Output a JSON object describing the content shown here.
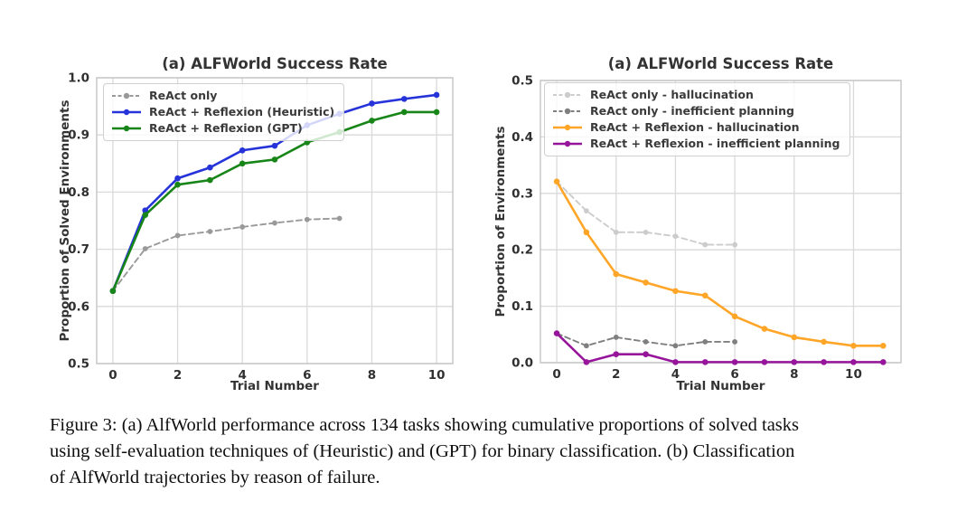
{
  "figure": {
    "caption_lines": [
      "Figure 3: (a) AlfWorld performance across 134 tasks showing cumulative proportions of solved tasks",
      "using self-evaluation techniques of (Heuristic) and (GPT) for binary classification. (b) Classification",
      "of AlfWorld trajectories by reason of failure."
    ]
  },
  "chart_data": [
    {
      "type": "line",
      "title": "(a) ALFWorld Success Rate",
      "xlabel": "Trial Number",
      "ylabel": "Proportion of Solved Environments",
      "xlim": [
        -0.5,
        10.5
      ],
      "ylim": [
        0.5,
        1.0
      ],
      "xticks": [
        0,
        2,
        4,
        6,
        8,
        10
      ],
      "yticks": [
        0.5,
        0.6,
        0.7,
        0.8,
        0.9,
        1.0
      ],
      "grid": true,
      "legend_position": "upper left",
      "series": [
        {
          "name": "ReAct only",
          "color": "#999999",
          "style": "dashed",
          "x": [
            0,
            1,
            2,
            3,
            4,
            5,
            6,
            7
          ],
          "values": [
            0.627,
            0.701,
            0.724,
            0.731,
            0.739,
            0.746,
            0.752,
            0.754
          ]
        },
        {
          "name": "ReAct + Reflexion (Heuristic)",
          "color": "#2533d9",
          "style": "solid",
          "x": [
            0,
            1,
            2,
            3,
            4,
            5,
            6,
            7,
            8,
            9,
            10
          ],
          "values": [
            0.627,
            0.768,
            0.824,
            0.843,
            0.873,
            0.881,
            0.917,
            0.937,
            0.955,
            0.963,
            0.97
          ]
        },
        {
          "name": "ReAct + Reflexion (GPT)",
          "color": "#178517",
          "style": "solid",
          "x": [
            0,
            1,
            2,
            3,
            4,
            5,
            6,
            7,
            8,
            9,
            10
          ],
          "values": [
            0.627,
            0.76,
            0.813,
            0.821,
            0.85,
            0.857,
            0.887,
            0.905,
            0.925,
            0.94,
            0.94
          ]
        }
      ]
    },
    {
      "type": "line",
      "title": "(a) ALFWorld Success Rate",
      "xlabel": "Trial Number",
      "ylabel": "Proportion of Environments",
      "xlim": [
        -0.55,
        11.6
      ],
      "ylim": [
        0.0,
        0.5
      ],
      "xticks": [
        0,
        2,
        4,
        6,
        8,
        10
      ],
      "yticks": [
        0.0,
        0.1,
        0.2,
        0.3,
        0.4,
        0.5
      ],
      "grid": true,
      "legend_position": "upper left",
      "series": [
        {
          "name": "ReAct only - hallucination",
          "color": "#cccccc",
          "style": "dashed",
          "x": [
            0,
            1,
            2,
            3,
            4,
            5,
            6
          ],
          "values": [
            0.321,
            0.269,
            0.231,
            0.231,
            0.224,
            0.209,
            0.209
          ]
        },
        {
          "name": "ReAct only - inefficient planning",
          "color": "#7f7f7f",
          "style": "dashed",
          "x": [
            0,
            1,
            2,
            3,
            4,
            5,
            6
          ],
          "values": [
            0.052,
            0.03,
            0.045,
            0.037,
            0.03,
            0.037,
            0.037
          ]
        },
        {
          "name": "ReAct + Reflexion - hallucination",
          "color": "#ffa629",
          "style": "solid",
          "x": [
            0,
            1,
            2,
            3,
            4,
            5,
            6,
            7,
            8,
            9,
            10,
            11
          ],
          "values": [
            0.321,
            0.231,
            0.157,
            0.142,
            0.127,
            0.119,
            0.082,
            0.06,
            0.045,
            0.037,
            0.03,
            0.03
          ]
        },
        {
          "name": "ReAct + Reflexion - inefficient planning",
          "color": "#96159b",
          "style": "solid",
          "x": [
            0,
            1,
            2,
            3,
            4,
            5,
            6,
            7,
            8,
            9,
            10,
            11
          ],
          "values": [
            0.052,
            0.001,
            0.015,
            0.015,
            0.001,
            0.001,
            0.001,
            0.001,
            0.001,
            0.001,
            0.001,
            0.001
          ]
        }
      ]
    }
  ]
}
